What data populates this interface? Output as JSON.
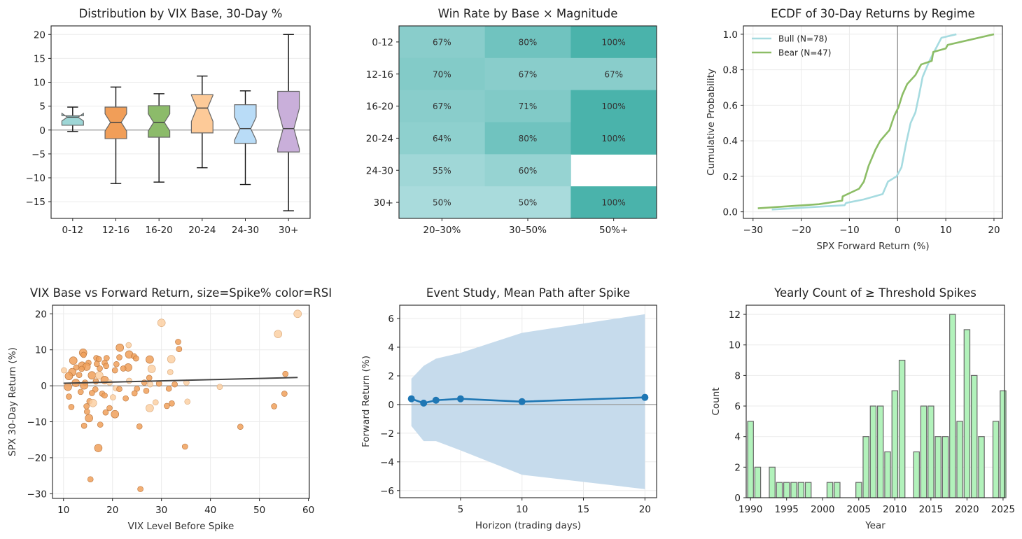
{
  "chart_data": [
    {
      "type": "box",
      "title": "Distribution by VIX Base, 30-Day %",
      "xlabel": "",
      "ylabel": "",
      "ylim": [
        -18.5,
        21.8
      ],
      "yticks": [
        -15,
        -10,
        -5,
        0,
        5,
        10,
        15,
        20
      ],
      "reference_line_y": 0,
      "grid": "y",
      "boxes": [
        {
          "category": "0-12",
          "whisker_low": -0.3,
          "q1": 1.0,
          "median": 2.7,
          "q3": 3.0,
          "whisker_high": 4.8,
          "notch": [
            1.9,
            3.5
          ],
          "color": "#9ed6d6"
        },
        {
          "category": "12-16",
          "whisker_low": -11.2,
          "q1": -1.8,
          "median": 1.6,
          "q3": 4.8,
          "whisker_high": 9.0,
          "notch": [
            -0.2,
            3.4
          ],
          "color": "#f19e58"
        },
        {
          "category": "16-20",
          "whisker_low": -10.9,
          "q1": -1.5,
          "median": 1.6,
          "q3": 5.1,
          "whisker_high": 7.6,
          "notch": [
            -0.2,
            3.4
          ],
          "color": "#8cbb6a"
        },
        {
          "category": "20-24",
          "whisker_low": -7.9,
          "q1": -0.6,
          "median": 4.6,
          "q3": 7.4,
          "whisker_high": 11.3,
          "notch": [
            1.8,
            7.3
          ],
          "color": "#fdca98"
        },
        {
          "category": "24-30",
          "whisker_low": -11.4,
          "q1": -2.8,
          "median": 0.3,
          "q3": 5.3,
          "whisker_high": 8.2,
          "notch": [
            -2.1,
            2.7
          ],
          "color": "#b9dcf7"
        },
        {
          "category": "30+",
          "whisker_low": -16.9,
          "q1": -4.6,
          "median": 0.3,
          "q3": 8.1,
          "whisker_high": 20.0,
          "notch": [
            -3.9,
            4.5
          ],
          "color": "#c9afda"
        }
      ]
    },
    {
      "type": "heatmap",
      "title": "Win Rate by Base × Magnitude",
      "rows": [
        "0-12",
        "12-16",
        "16-20",
        "20-24",
        "24-30",
        "30+"
      ],
      "columns": [
        "20–30%",
        "30–50%",
        "50%+"
      ],
      "values": [
        [
          67,
          80,
          100
        ],
        [
          70,
          67,
          67
        ],
        [
          67,
          71,
          100
        ],
        [
          64,
          80,
          100
        ],
        [
          55,
          60,
          null
        ],
        [
          50,
          50,
          100
        ]
      ],
      "value_format": "percent",
      "color_low": "#a9dbdc",
      "color_high": "#4ab3ab"
    },
    {
      "type": "line",
      "title": "ECDF of 30-Day Returns by Regime",
      "xlabel": "SPX Forward Return (%)",
      "ylabel": "Cumulative Probability",
      "xlim": [
        -32,
        21.75
      ],
      "ylim": [
        -0.037,
        1.047
      ],
      "xticks": [
        -30,
        -20,
        -10,
        0,
        10,
        20
      ],
      "yticks": [
        0.0,
        0.2,
        0.4,
        0.6,
        0.8,
        1.0
      ],
      "reference_line_x": 0,
      "grid": "both",
      "legend": "top-left",
      "series": [
        {
          "name": "Bull (N=78)",
          "color": "#a6dbe0",
          "points": [
            [
              -26.1,
              0.013
            ],
            [
              -11,
              0.037
            ],
            [
              -10.7,
              0.05
            ],
            [
              -7,
              0.07
            ],
            [
              -3.1,
              0.1
            ],
            [
              -2,
              0.17
            ],
            [
              -0.2,
              0.2
            ],
            [
              0.8,
              0.25
            ],
            [
              1.8,
              0.39
            ],
            [
              2.7,
              0.5
            ],
            [
              3.7,
              0.56
            ],
            [
              4.4,
              0.65
            ],
            [
              5.2,
              0.76
            ],
            [
              6.6,
              0.85
            ],
            [
              9.1,
              0.98
            ],
            [
              12.2,
              1.0
            ]
          ]
        },
        {
          "name": "Bear (N=47)",
          "color": "#8cbd66",
          "points": [
            [
              -29,
              0.02
            ],
            [
              -16.3,
              0.043
            ],
            [
              -11.5,
              0.063
            ],
            [
              -11.4,
              0.087
            ],
            [
              -8,
              0.13
            ],
            [
              -7,
              0.17
            ],
            [
              -6,
              0.26
            ],
            [
              -4.6,
              0.35
            ],
            [
              -3.6,
              0.4
            ],
            [
              -1.7,
              0.46
            ],
            [
              -0.7,
              0.54
            ],
            [
              0.2,
              0.59
            ],
            [
              1,
              0.66
            ],
            [
              2,
              0.72
            ],
            [
              3.7,
              0.77
            ],
            [
              4.9,
              0.83
            ],
            [
              7.1,
              0.85
            ],
            [
              7.4,
              0.9
            ],
            [
              10,
              0.92
            ],
            [
              10.4,
              0.94
            ],
            [
              20,
              1.0
            ]
          ]
        }
      ]
    },
    {
      "type": "scatter",
      "title": "VIX Base vs Forward Return, size=Spike% color=RSI",
      "xlabel": "VIX Level Before Spike",
      "ylabel": "SPX 30-Day Return (%)",
      "xlim": [
        7.75,
        60.2
      ],
      "ylim": [
        -31.3,
        22.4
      ],
      "xticks": [
        10,
        20,
        30,
        40,
        50,
        60
      ],
      "yticks": [
        -30,
        -20,
        -10,
        0,
        10,
        20
      ],
      "reference_line_y": 0,
      "grid": "both",
      "color_dark": "#f0a05a",
      "color_light": "#fbd0a3",
      "fit_line": [
        [
          10,
          0.7
        ],
        [
          57.8,
          2.3
        ]
      ],
      "point_fields": [
        "vix",
        "return",
        "spike_size",
        "rsi_high"
      ],
      "points": [
        [
          57.8,
          20,
          "l",
          1
        ],
        [
          30,
          17.5,
          "l",
          1
        ],
        [
          53.8,
          14.4,
          "l",
          1
        ],
        [
          33.4,
          12.2,
          "m",
          0
        ],
        [
          33.6,
          10.2,
          "m",
          0
        ],
        [
          23.3,
          11.3,
          "m",
          1
        ],
        [
          21.5,
          10.6,
          "l",
          0
        ],
        [
          14,
          9.2,
          "l",
          0
        ],
        [
          14.1,
          8.6,
          "m",
          0
        ],
        [
          23.4,
          8.7,
          "l",
          0
        ],
        [
          24.4,
          8.2,
          "m",
          0
        ],
        [
          24.8,
          7.6,
          "m",
          0
        ],
        [
          21.4,
          7.9,
          "m",
          0
        ],
        [
          12,
          7,
          "l",
          0
        ],
        [
          16.7,
          7.7,
          "m",
          0
        ],
        [
          18.8,
          7.7,
          "m",
          0
        ],
        [
          17.2,
          7.4,
          "m",
          0
        ],
        [
          27.6,
          7.3,
          "l",
          0
        ],
        [
          32,
          7.4,
          "l",
          1
        ],
        [
          15.1,
          6.4,
          "m",
          0
        ],
        [
          16.8,
          6.1,
          "m",
          0
        ],
        [
          18.4,
          6.4,
          "m",
          0
        ],
        [
          20.8,
          6,
          "m",
          0
        ],
        [
          13.8,
          5.6,
          "l",
          0
        ],
        [
          12.6,
          5.1,
          "m",
          0
        ],
        [
          14.7,
          5.3,
          "l",
          0
        ],
        [
          18.7,
          5.5,
          "m",
          0
        ],
        [
          23.2,
          5.1,
          "l",
          0
        ],
        [
          22.2,
          4.8,
          "m",
          0
        ],
        [
          17.4,
          4.8,
          "m",
          0
        ],
        [
          28,
          4.7,
          "l",
          1
        ],
        [
          13.7,
          4.7,
          "m",
          0
        ],
        [
          10.1,
          4.3,
          "m",
          1
        ],
        [
          11.8,
          3.8,
          "l",
          0
        ],
        [
          20.5,
          4.3,
          "m",
          0
        ],
        [
          31.8,
          3.8,
          "m",
          1
        ],
        [
          55.3,
          3.3,
          "m",
          0
        ],
        [
          13.2,
          3.0,
          "m",
          0
        ],
        [
          11.1,
          2.7,
          "l",
          0
        ],
        [
          15.8,
          2.9,
          "l",
          0
        ],
        [
          17.3,
          2.9,
          "l",
          1
        ],
        [
          27.5,
          2.2,
          "m",
          0
        ],
        [
          18.4,
          1.6,
          "l",
          0
        ],
        [
          23.4,
          1.4,
          "m",
          1
        ],
        [
          12.5,
          0.8,
          "l",
          0
        ],
        [
          14.4,
          0.9,
          "m",
          0
        ],
        [
          16.6,
          1.2,
          "m",
          0
        ],
        [
          19.4,
          0.9,
          "m",
          1
        ],
        [
          26.5,
          0.9,
          "m",
          0
        ],
        [
          29.5,
          0.6,
          "m",
          0
        ],
        [
          35.1,
          0.9,
          "m",
          1
        ],
        [
          32.7,
          0.4,
          "m",
          0
        ],
        [
          27.7,
          0.4,
          "m",
          1
        ],
        [
          14.2,
          0.1,
          "l",
          0
        ],
        [
          10.9,
          -0.3,
          "l",
          0
        ],
        [
          41.9,
          -0.3,
          "m",
          1
        ],
        [
          20.7,
          -0.7,
          "m",
          1
        ],
        [
          21.4,
          -0.9,
          "m",
          0
        ],
        [
          16.5,
          -1,
          "m",
          0
        ],
        [
          25,
          -0.8,
          "m",
          0
        ],
        [
          31.5,
          -0.8,
          "m",
          0
        ],
        [
          13.5,
          -1.7,
          "m",
          0
        ],
        [
          15.8,
          -2,
          "m",
          0
        ],
        [
          26.9,
          -1.4,
          "m",
          0
        ],
        [
          17.9,
          -2.2,
          "m",
          0
        ],
        [
          18.4,
          -2.7,
          "m",
          0
        ],
        [
          24.5,
          -2.1,
          "m",
          0
        ],
        [
          55.1,
          -2.2,
          "m",
          0
        ],
        [
          11.1,
          -3,
          "m",
          0
        ],
        [
          20.1,
          -3.2,
          "m",
          1
        ],
        [
          22.7,
          -3.5,
          "m",
          0
        ],
        [
          15.3,
          -4.3,
          "m",
          0
        ],
        [
          16,
          -4.8,
          "l",
          1
        ],
        [
          28.8,
          -4.6,
          "m",
          1
        ],
        [
          35.3,
          -4.4,
          "m",
          1
        ],
        [
          32.1,
          -4.9,
          "m",
          0
        ],
        [
          14.7,
          -5.7,
          "m",
          0
        ],
        [
          31.1,
          -5.6,
          "m",
          0
        ],
        [
          11.6,
          -5.9,
          "m",
          0
        ],
        [
          19.4,
          -6.2,
          "m",
          0
        ],
        [
          27.6,
          -6.2,
          "l",
          1
        ],
        [
          14.8,
          -7.2,
          "m",
          0
        ],
        [
          18.6,
          -7.4,
          "m",
          0
        ],
        [
          20.5,
          -7.9,
          "l",
          0
        ],
        [
          53,
          -5.7,
          "m",
          0
        ],
        [
          15.2,
          -9,
          "l",
          0
        ],
        [
          14.2,
          -11.1,
          "m",
          0
        ],
        [
          17.5,
          -10.8,
          "m",
          0
        ],
        [
          25.5,
          -11.3,
          "m",
          0
        ],
        [
          46.1,
          -11.4,
          "m",
          0
        ],
        [
          17.1,
          -17.3,
          "l",
          0
        ],
        [
          34.8,
          -16.9,
          "m",
          0
        ],
        [
          15.5,
          -26,
          "m",
          0
        ],
        [
          25.7,
          -28.7,
          "m",
          0
        ]
      ]
    },
    {
      "type": "line",
      "title": "Event Study, Mean Path after Spike",
      "xlabel": "Horizon (trading days)",
      "ylabel": "Forward Return (%)",
      "xlim": [
        0.05,
        20.95
      ],
      "ylim": [
        -6.5,
        6.93
      ],
      "xticks": [
        5,
        10,
        15,
        20
      ],
      "yticks": [
        -6,
        -4,
        -2,
        0,
        2,
        4,
        6
      ],
      "reference_line_y": 0,
      "grid": "both",
      "x": [
        1,
        2,
        3,
        5,
        10,
        20
      ],
      "mean": [
        0.4,
        0.1,
        0.3,
        0.4,
        0.2,
        0.5
      ],
      "band_upper": [
        1.8,
        2.7,
        3.2,
        3.6,
        5.0,
        6.3
      ],
      "band_lower": [
        -1.5,
        -2.55,
        -2.55,
        -3.2,
        -4.9,
        -5.9
      ],
      "line_color": "#1f77b4",
      "band_color": "#c6dbec"
    },
    {
      "type": "bar",
      "title": "Yearly Count of ≥ Threshold Spikes",
      "xlabel": "Year",
      "ylabel": "Count",
      "xlim": [
        1989.4,
        2025.2
      ],
      "ylim": [
        0,
        12.6
      ],
      "xticks": [
        1990,
        1995,
        2000,
        2005,
        2010,
        2015,
        2020,
        2025
      ],
      "yticks": [
        0,
        2,
        4,
        6,
        8,
        10,
        12
      ],
      "grid": "y",
      "bar_color": "#b2f2bb",
      "edge_color": "#666666",
      "categories": [
        1990,
        1991,
        1993,
        1994,
        1995,
        1996,
        1997,
        1998,
        2001,
        2002,
        2005,
        2006,
        2007,
        2008,
        2009,
        2010,
        2011,
        2013,
        2014,
        2015,
        2016,
        2017,
        2018,
        2019,
        2020,
        2021,
        2022,
        2024,
        2025
      ],
      "values": [
        5,
        2,
        2,
        1,
        1,
        1,
        1,
        1,
        1,
        1,
        1,
        4,
        6,
        6,
        3,
        7,
        9,
        3,
        6,
        6,
        4,
        4,
        12,
        5,
        11,
        8,
        4,
        5,
        7
      ]
    }
  ]
}
